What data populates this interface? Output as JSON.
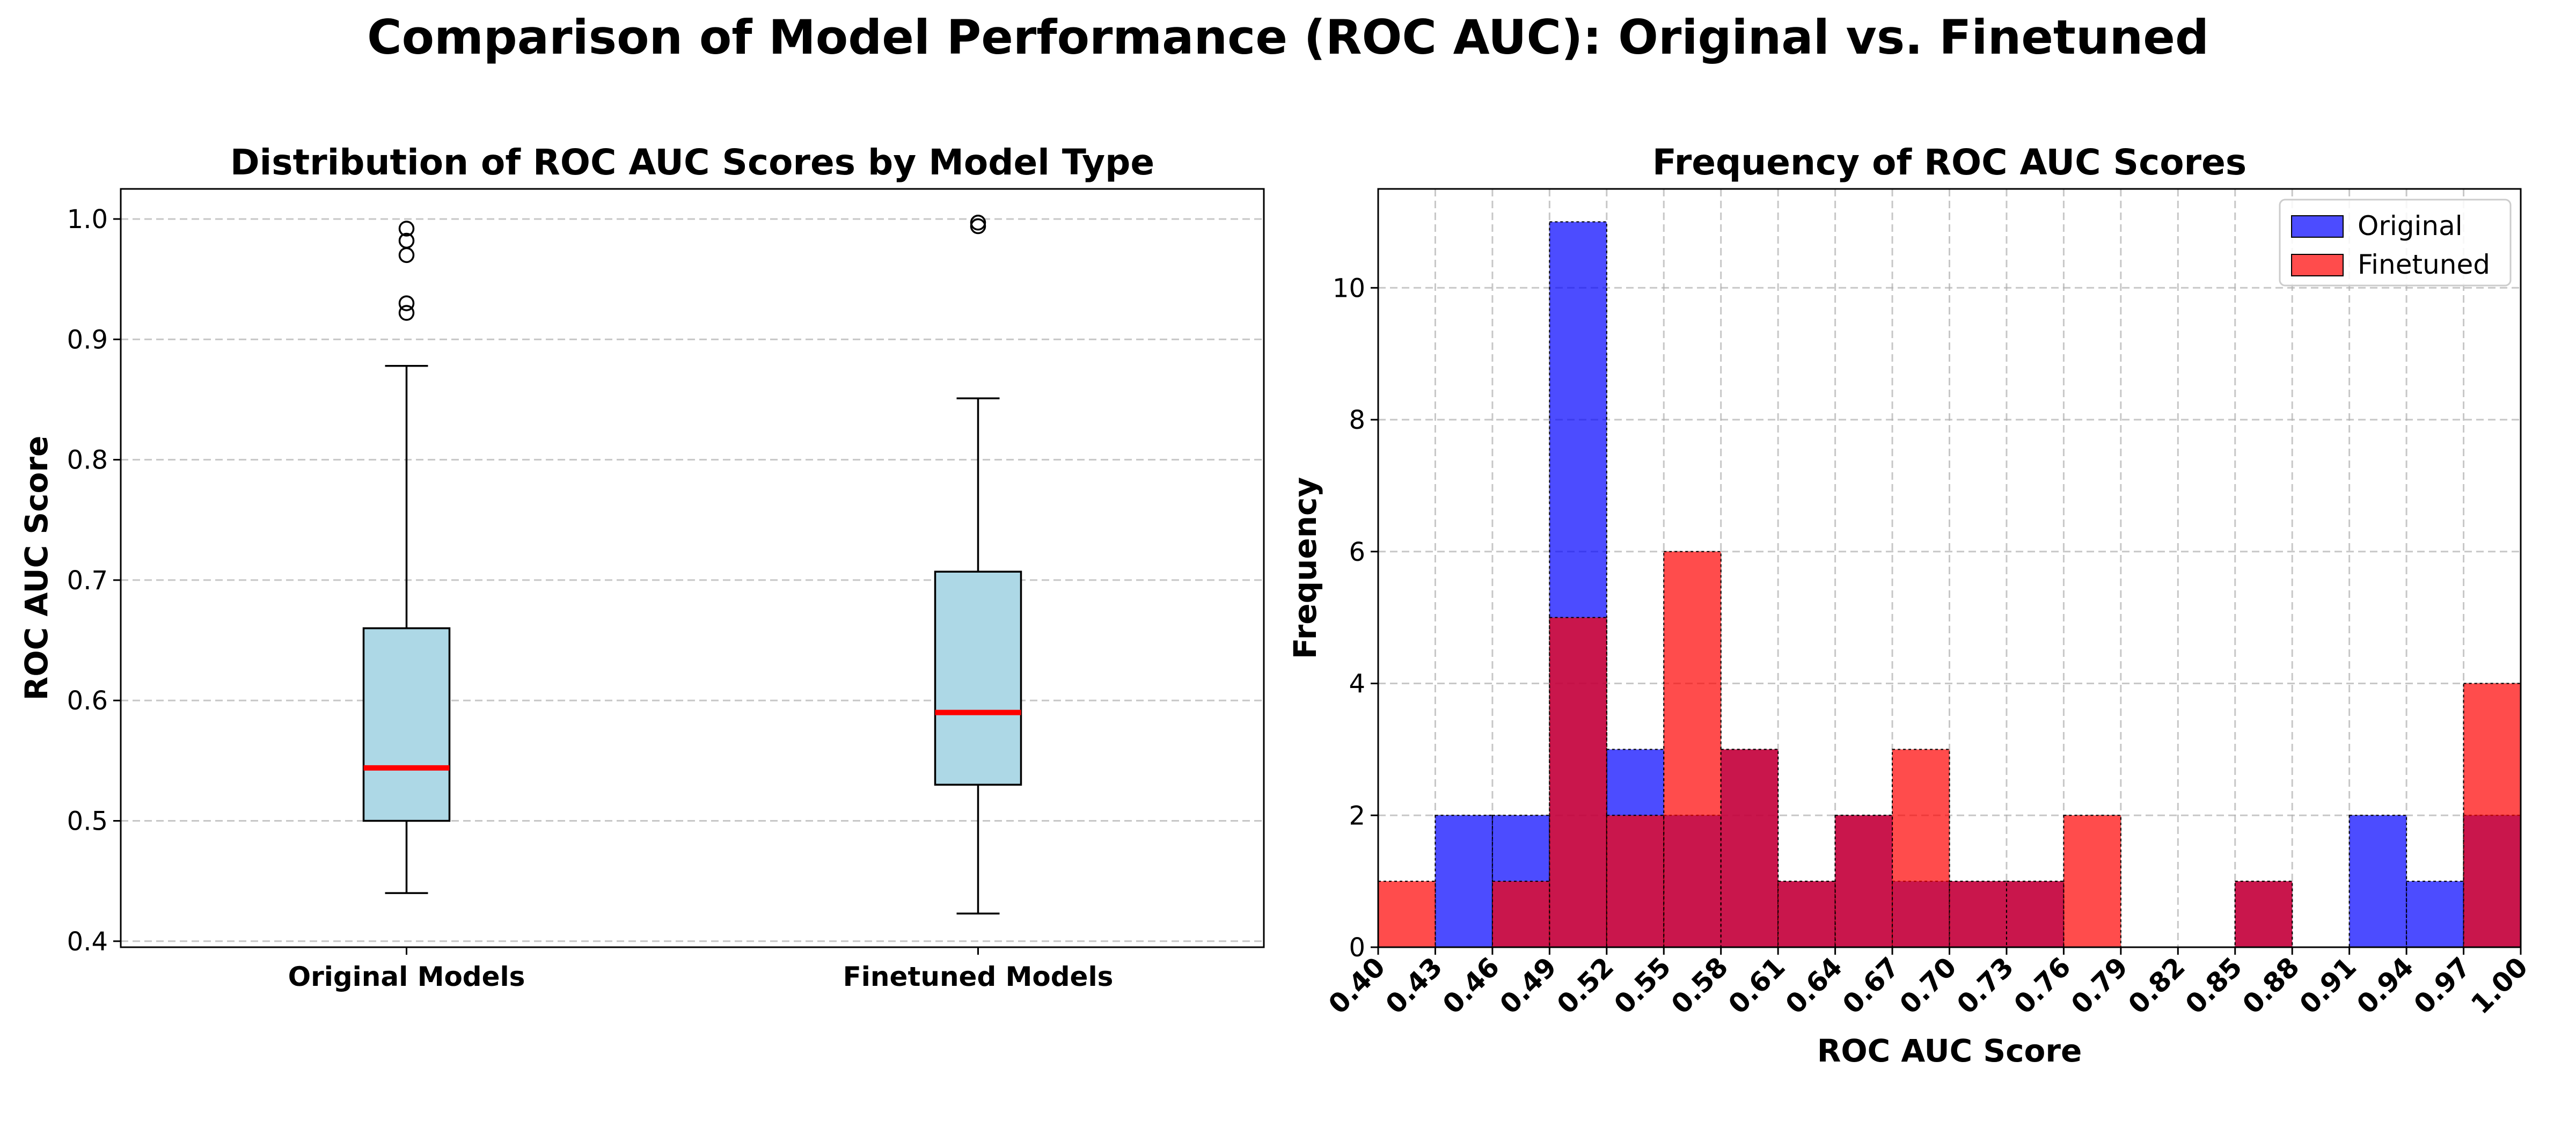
{
  "suptitle": "Comparison of Model Performance (ROC AUC): Original vs. Finetuned",
  "chart_data": [
    {
      "type": "box",
      "title": "Distribution of ROC AUC Scores by Model Type",
      "xlabel": "",
      "ylabel": "ROC AUC Score",
      "ylim": [
        0.395,
        1.025
      ],
      "yticks": [
        "0.4",
        "0.5",
        "0.6",
        "0.7",
        "0.8",
        "0.9",
        "1.0"
      ],
      "grid": true,
      "categories": [
        "Original Models",
        "Finetuned Models"
      ],
      "boxes": [
        {
          "whisker_low": 0.44,
          "q1": 0.5,
          "median": 0.544,
          "q3": 0.66,
          "whisker_high": 0.878,
          "outliers": [
            0.922,
            0.93,
            0.97,
            0.982,
            0.992
          ]
        },
        {
          "whisker_low": 0.423,
          "q1": 0.53,
          "median": 0.59,
          "q3": 0.707,
          "whisker_high": 0.851,
          "outliers": [
            0.994,
            0.997
          ]
        }
      ],
      "colors": {
        "box_fill": "#add8e6",
        "median": "#ff0000"
      }
    },
    {
      "type": "histogram",
      "title": "Frequency of ROC AUC Scores",
      "xlabel": "ROC AUC Score",
      "ylabel": "Frequency",
      "xlim": [
        0.4,
        1.0
      ],
      "ylim": [
        0,
        11.5
      ],
      "yticks": [
        "0",
        "2",
        "4",
        "6",
        "8",
        "10"
      ],
      "grid": true,
      "bin_edges": [
        "0.40",
        "0.43",
        "0.46",
        "0.49",
        "0.52",
        "0.55",
        "0.58",
        "0.61",
        "0.64",
        "0.67",
        "0.70",
        "0.73",
        "0.76",
        "0.79",
        "0.82",
        "0.85",
        "0.88",
        "0.91",
        "0.94",
        "0.97",
        "1.00"
      ],
      "series": [
        {
          "name": "Original",
          "color": "#0000ff",
          "values": [
            0,
            2,
            2,
            11,
            3,
            2,
            3,
            1,
            2,
            1,
            1,
            1,
            0,
            0,
            0,
            1,
            0,
            2,
            1,
            2
          ]
        },
        {
          "name": "Finetuned",
          "color": "#ff0000",
          "values": [
            1,
            0,
            1,
            5,
            2,
            6,
            3,
            1,
            2,
            3,
            1,
            1,
            2,
            0,
            0,
            1,
            0,
            0,
            0,
            4
          ]
        }
      ],
      "legend": "top-right"
    }
  ]
}
